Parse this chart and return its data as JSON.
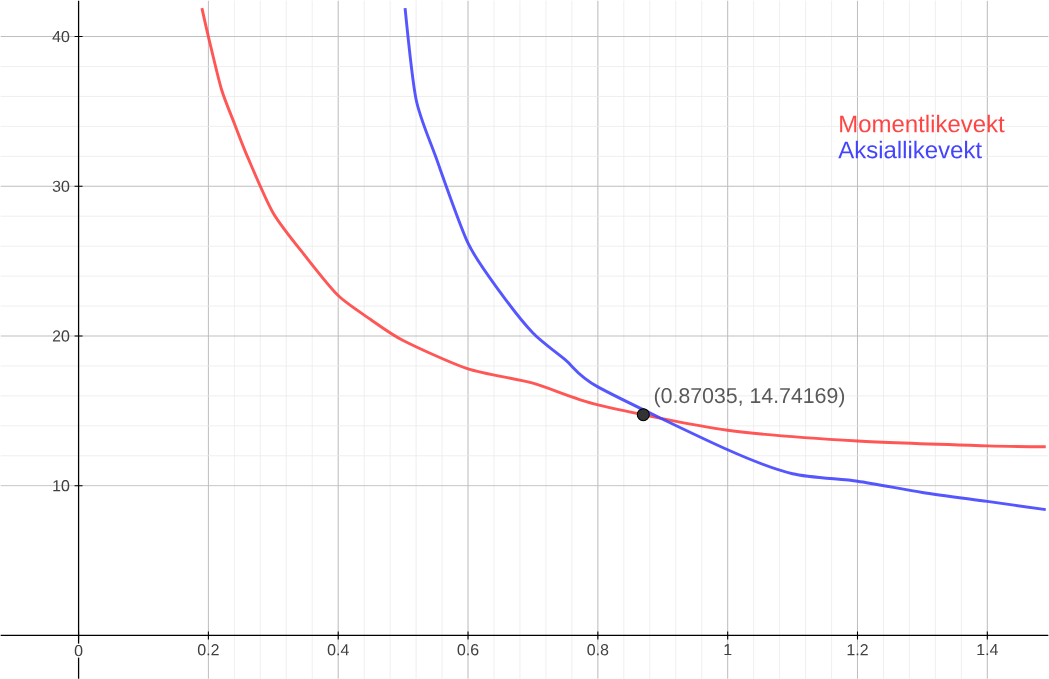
{
  "chart_data": {
    "type": "line",
    "xlim": [
      -0.12,
      1.494
    ],
    "ylim": [
      -2.9,
      42.4
    ],
    "xticks": [
      {
        "value": 0,
        "label": "0"
      },
      0.2,
      0.4,
      0.6,
      0.8,
      1,
      1.2,
      1.4
    ],
    "yticks": [
      10,
      20,
      30,
      40
    ],
    "grid": true,
    "legend": "top right",
    "series": [
      {
        "name": "Momentlikevekt",
        "color": "#ff4444",
        "x": [
          0.19,
          0.2,
          0.22,
          0.24,
          0.26,
          0.3,
          0.35,
          0.4,
          0.45,
          0.5,
          0.6,
          0.7,
          0.8,
          1.0,
          1.2,
          1.4,
          1.49
        ],
        "values": [
          41.9,
          40,
          36.5,
          34.2,
          32,
          28.2,
          25.3,
          22.7,
          21.1,
          19.7,
          17.8,
          16.85,
          15.4,
          13.7,
          12.98,
          12.66,
          12.6
        ]
      },
      {
        "name": "Aksiallikevekt",
        "color": "#4444ff",
        "x": [
          0.503,
          0.52,
          0.55,
          0.6,
          0.65,
          0.7,
          0.75,
          0.8,
          1.0,
          1.1,
          1.2,
          1.3,
          1.4,
          1.49
        ],
        "values": [
          41.9,
          35.8,
          32.0,
          26.2,
          22.9,
          20.2,
          18.4,
          16.6,
          12.4,
          10.8,
          10.3,
          9.55,
          8.95,
          8.4
        ]
      },
      {
        "type": "scatter",
        "marker": "circle",
        "color": "#333333",
        "x": [
          0.87
        ],
        "values": [
          14.74
        ]
      }
    ],
    "annotations": [
      {
        "text": "(0.87035, 14.74169)",
        "x": 0.87035,
        "y": 14.74169
      }
    ]
  }
}
